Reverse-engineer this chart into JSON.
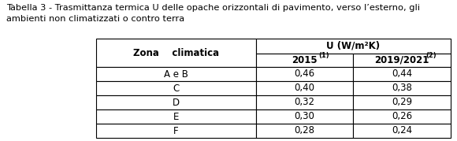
{
  "title_line1": "Tabella 3 - Trasmittanza termica U delle opache orizzontali di pavimento, verso l’esterno, gli",
  "title_line2": "ambienti non climatizzati o contro terra",
  "col_header_main": "U (W/m²K)",
  "col_header_2015": "2015",
  "col_header_2015_sup": "(1)",
  "col_header_2019": "2019/2021",
  "col_header_2019_sup": "(2)",
  "col_zona": "Zona    climatica",
  "rows": [
    {
      "zona": "A e B",
      "v2015": "0,46",
      "v2019": "0,44"
    },
    {
      "zona": "C",
      "v2015": "0,40",
      "v2019": "0,38"
    },
    {
      "zona": "D",
      "v2015": "0,32",
      "v2019": "0,29"
    },
    {
      "zona": "E",
      "v2015": "0,30",
      "v2019": "0,26"
    },
    {
      "zona": "F",
      "v2015": "0,28",
      "v2019": "0,24"
    }
  ],
  "bg_color": "#ffffff",
  "text_color": "#000000",
  "line_color": "#000000",
  "title_fontsize": 8.2,
  "header_fontsize": 8.5,
  "cell_fontsize": 8.5,
  "fig_width": 5.8,
  "fig_height": 1.79
}
